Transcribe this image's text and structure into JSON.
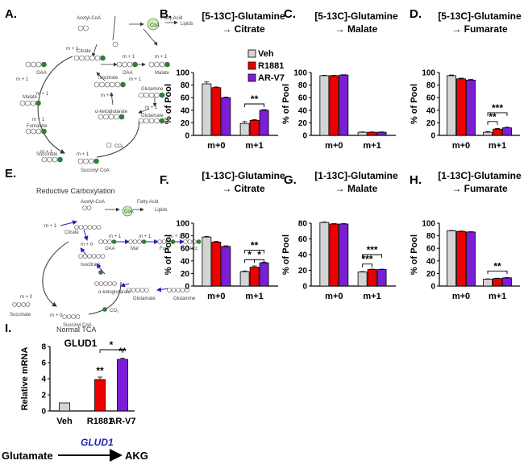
{
  "panels": {
    "A": "A.",
    "B": "B.",
    "C": "C.",
    "D": "D.",
    "E": "E.",
    "F": "F.",
    "G": "G.",
    "H": "H.",
    "I": "I."
  },
  "colors": {
    "veh": "#d4d4d4",
    "r1881": "#ee0000",
    "arv7": "#7a1fd6",
    "green": "#1f8a2a",
    "blue": "#2222bb"
  },
  "legend": [
    "Veh",
    "R1881",
    "AR-V7"
  ],
  "diagram_a": {
    "labels": [
      "Acetyl-CoA",
      "CoA",
      "Fatty Acid",
      "Lipids",
      "Citrate",
      "OAA",
      "OAA",
      "Malate",
      "Isocitrate",
      "Malate",
      "Fumarate",
      "α-ketoglutarate",
      "Glutamine",
      "Glutamate",
      "Succinate",
      "Succinyl CoA",
      "CO₂"
    ],
    "m_labels": [
      "m + 1",
      "m + 1",
      "m + 1",
      "m + 1",
      "m + 1",
      "m + 1",
      "m + 1",
      "m + 1",
      "m + 1",
      "m + 1",
      "m + 1"
    ]
  },
  "diagram_e": {
    "top_caption": "Reductive Carboxylation",
    "bottom_caption": "Normal TCA",
    "labels": [
      "Acetyl-CoA",
      "CoA",
      "Fatty Acid",
      "Lipids",
      "Citrate",
      "OAA",
      "Mal",
      "Fum",
      "Succ",
      "Isocitrate",
      "α-ketoglutarate",
      "Glutamate",
      "Glutamine",
      "Succinate",
      "Succinyl CoA",
      "CO₂"
    ],
    "m_labels": [
      "m + 1",
      "m + 0",
      "m + 1",
      "m + 1",
      "m + 1",
      "m + 0",
      "m + 0"
    ]
  },
  "chart_data": [
    {
      "id": "B",
      "type": "bar",
      "title": [
        "[5-13C]-Glutamine",
        "→ Citrate"
      ],
      "ylabel": "% of Pool",
      "categories": [
        "m+0",
        "m+1"
      ],
      "ylim": [
        0,
        100
      ],
      "yticks": [
        0,
        20,
        40,
        60,
        80,
        100
      ],
      "series": [
        {
          "name": "Veh",
          "values": [
            82,
            19
          ],
          "errors": [
            3,
            3
          ]
        },
        {
          "name": "R1881",
          "values": [
            76,
            24
          ],
          "errors": [
            1,
            1
          ]
        },
        {
          "name": "AR-V7",
          "values": [
            60,
            40
          ],
          "errors": [
            1,
            1
          ]
        }
      ],
      "annotations": [
        {
          "text": "**",
          "cat": 1,
          "from": 0,
          "to": 2,
          "level": 50
        }
      ]
    },
    {
      "id": "C",
      "type": "bar",
      "title": [
        "[5-13C]-Glutamine",
        "→ Malate"
      ],
      "ylabel": "% of Pool",
      "categories": [
        "m+0",
        "m+1"
      ],
      "ylim": [
        0,
        100
      ],
      "yticks": [
        0,
        20,
        40,
        60,
        80,
        100
      ],
      "series": [
        {
          "name": "Veh",
          "values": [
            95,
            5
          ],
          "errors": [
            0.5,
            0.5
          ]
        },
        {
          "name": "R1881",
          "values": [
            95,
            5
          ],
          "errors": [
            0.5,
            0.5
          ]
        },
        {
          "name": "AR-V7",
          "values": [
            96,
            5
          ],
          "errors": [
            0.5,
            0.5
          ]
        }
      ],
      "annotations": []
    },
    {
      "id": "D",
      "type": "bar",
      "title": [
        "[5-13C]-Glutamine",
        "→ Fumarate"
      ],
      "ylabel": "% of Pool",
      "categories": [
        "m+0",
        "m+1"
      ],
      "ylim": [
        0,
        100
      ],
      "yticks": [
        0,
        20,
        40,
        60,
        80,
        100
      ],
      "series": [
        {
          "name": "Veh",
          "values": [
            95,
            5
          ],
          "errors": [
            1,
            1
          ]
        },
        {
          "name": "R1881",
          "values": [
            90,
            10
          ],
          "errors": [
            1,
            1
          ]
        },
        {
          "name": "AR-V7",
          "values": [
            88,
            12
          ],
          "errors": [
            1,
            1
          ]
        }
      ],
      "annotations": [
        {
          "text": "***",
          "cat": 1,
          "from": 0,
          "to": 2,
          "level": 36
        },
        {
          "text": "**",
          "cat": 1,
          "from": 0,
          "to": 1,
          "level": 22
        }
      ]
    },
    {
      "id": "F",
      "type": "bar",
      "title": [
        "[1-13C]-Glutamine",
        "→ Citrate"
      ],
      "ylabel": "% of Pool",
      "categories": [
        "m+0",
        "m+1"
      ],
      "ylim": [
        0,
        100
      ],
      "yticks": [
        0,
        20,
        40,
        60,
        80,
        100
      ],
      "series": [
        {
          "name": "Veh",
          "values": [
            78,
            23
          ],
          "errors": [
            1,
            1
          ]
        },
        {
          "name": "R1881",
          "values": [
            70,
            30
          ],
          "errors": [
            1,
            2
          ]
        },
        {
          "name": "AR-V7",
          "values": [
            63,
            37
          ],
          "errors": [
            1,
            1
          ]
        }
      ],
      "annotations": [
        {
          "text": "**",
          "cat": 1,
          "from": 0,
          "to": 2,
          "level": 57
        },
        {
          "text": "*",
          "cat": 1,
          "from": 0,
          "to": 1,
          "level": 42
        },
        {
          "text": "*",
          "cat": 1,
          "from": 1,
          "to": 2,
          "level": 42
        }
      ]
    },
    {
      "id": "G",
      "type": "bar",
      "title": [
        "[1-13C]-Glutamine",
        "→ Malate"
      ],
      "ylabel": "% of Pool",
      "categories": [
        "m+0",
        "m+1"
      ],
      "ylim": [
        0,
        80
      ],
      "yticks": [
        0,
        20,
        40,
        60,
        80
      ],
      "series": [
        {
          "name": "Veh",
          "values": [
            81,
            18
          ],
          "errors": [
            0.5,
            0.5
          ]
        },
        {
          "name": "R1881",
          "values": [
            79,
            21
          ],
          "errors": [
            0.5,
            0.5
          ]
        },
        {
          "name": "AR-V7",
          "values": [
            79,
            21
          ],
          "errors": [
            0.5,
            0.5
          ]
        }
      ],
      "annotations": [
        {
          "text": "***",
          "cat": 1,
          "from": 0,
          "to": 2,
          "level": 40
        },
        {
          "text": "***",
          "cat": 1,
          "from": 0,
          "to": 1,
          "level": 28
        }
      ]
    },
    {
      "id": "H",
      "type": "bar",
      "title": [
        "[1-13C]-Glutamine",
        "→ Fumarate"
      ],
      "ylabel": "% of Pool",
      "categories": [
        "m+0",
        "m+1"
      ],
      "ylim": [
        0,
        100
      ],
      "yticks": [
        0,
        20,
        40,
        60,
        80,
        100
      ],
      "series": [
        {
          "name": "Veh",
          "values": [
            88,
            11
          ],
          "errors": [
            0.5,
            0.5
          ]
        },
        {
          "name": "R1881",
          "values": [
            87,
            12
          ],
          "errors": [
            0.5,
            0.5
          ]
        },
        {
          "name": "AR-V7",
          "values": [
            86,
            13
          ],
          "errors": [
            0.5,
            0.5
          ]
        }
      ],
      "annotations": [
        {
          "text": "**",
          "cat": 1,
          "from": 0,
          "to": 2,
          "level": 24
        }
      ]
    },
    {
      "id": "I",
      "type": "bar",
      "title": [
        "GLUD1"
      ],
      "ylabel": "Relative mRNA",
      "categories": [
        "Veh",
        "R1881",
        "AR-V7"
      ],
      "ylim": [
        0,
        8
      ],
      "yticks": [
        0,
        2,
        4,
        6,
        8
      ],
      "series": [
        {
          "name": "Relative mRNA",
          "values": [
            1,
            3.9,
            6.4
          ],
          "errors": [
            0,
            0.3,
            0.15
          ]
        }
      ],
      "annotations": [
        {
          "text": "**",
          "bar": 1,
          "level": 4.6
        },
        {
          "text": "**",
          "bar": 2,
          "level": 7.0
        },
        {
          "text": "*",
          "bar": [
            1,
            2
          ],
          "level": 7.6
        }
      ]
    }
  ],
  "panel_i_footer": {
    "substrate": "Glutamate",
    "enzyme": "GLUD1",
    "product": "AKG"
  }
}
